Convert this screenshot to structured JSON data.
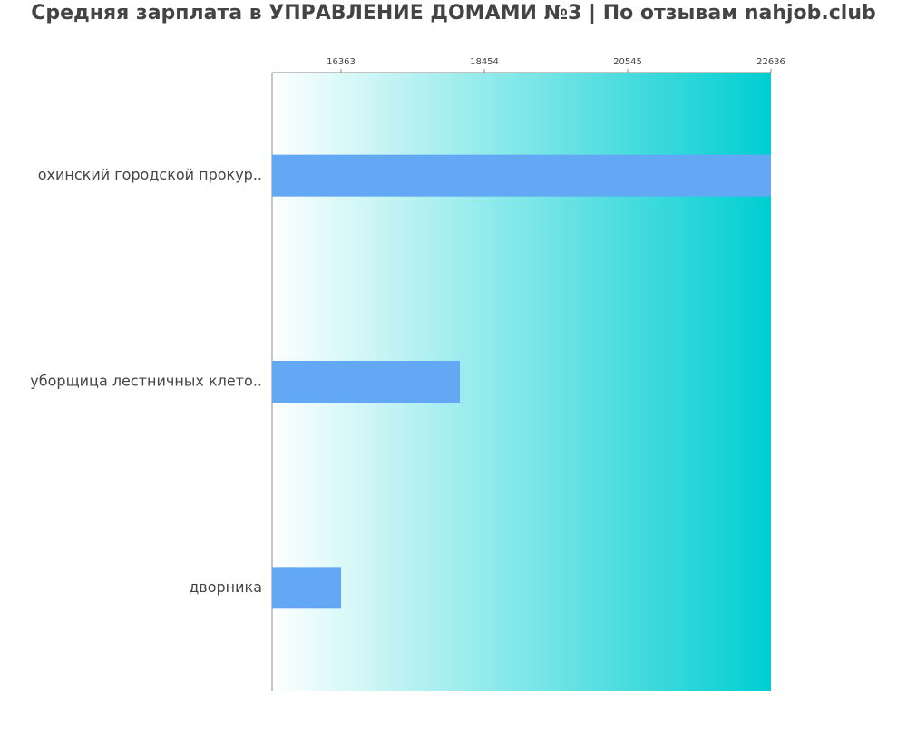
{
  "chart_data": {
    "type": "barh",
    "title": "Средняя зарплата в УПРАВЛЕНИЕ ДОМАМИ №3 | По отзывам nahjob.club",
    "categories": [
      "охинский городской прокур..",
      "уборщица лестничных клето..",
      "дворника"
    ],
    "values": [
      22636,
      18097,
      16363
    ],
    "color": "#63a8f5",
    "xlim": [
      15357,
      22636
    ],
    "xticks": [
      16363,
      18454,
      20545,
      22636
    ]
  }
}
